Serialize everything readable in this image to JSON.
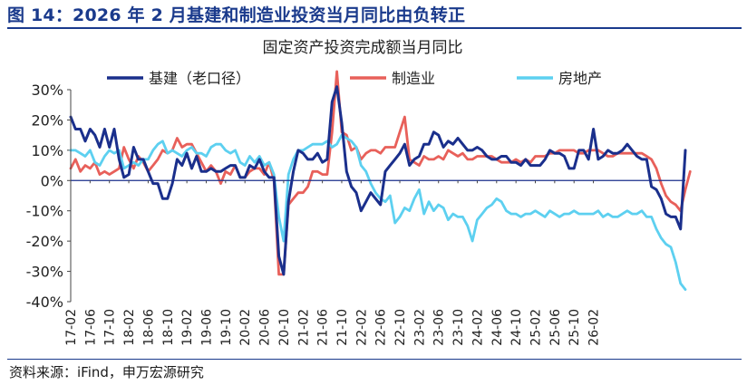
{
  "figure": {
    "title": "图 14：2026 年 2 月基建和制造业投资当月同比由负转正",
    "source": "资料来源：iFind，申万宏源研究"
  },
  "chart_data": {
    "type": "line",
    "title": "固定资产投资完成额当月同比",
    "y_tick_labels": [
      "30%",
      "20%",
      "10%",
      "0%",
      "-10%",
      "-20%",
      "-30%",
      "-40%"
    ],
    "ylim": [
      -40,
      30
    ],
    "y_ticks": [
      30,
      20,
      10,
      0,
      -10,
      -20,
      -30,
      -40
    ],
    "x_start": "2017-02",
    "x_tick_labels": [
      "17-02",
      "17-06",
      "17-10",
      "18-02",
      "18-06",
      "18-10",
      "19-02",
      "19-06",
      "19-10",
      "20-02",
      "20-06",
      "20-10",
      "21-02",
      "21-06",
      "21-10",
      "22-02",
      "22-06",
      "22-10",
      "23-02",
      "23-06",
      "23-10",
      "24-02",
      "24-06",
      "24-10",
      "25-02",
      "25-06",
      "25-10",
      "26-02"
    ],
    "legend_position": "top",
    "series": [
      {
        "name": "基建（老口径）",
        "color": "#1a2f8c",
        "values": [
          21,
          17,
          17,
          13,
          17,
          15,
          11,
          17,
          11,
          17,
          7,
          1,
          2,
          11,
          7,
          7,
          3,
          -1,
          -1,
          -6,
          -6,
          -1,
          7,
          5,
          9,
          4,
          8,
          3,
          3,
          4,
          3,
          3,
          4,
          5,
          5,
          1,
          1,
          5,
          4,
          7,
          3,
          1,
          1,
          -25,
          -31,
          -7,
          3,
          10,
          9,
          7,
          7,
          9,
          6,
          7,
          26,
          31,
          19,
          3,
          -2,
          -4,
          -10,
          -7,
          -4,
          -6,
          -8,
          3,
          5,
          7,
          9,
          12,
          5,
          7,
          8,
          12,
          12,
          16,
          15,
          11,
          13,
          12,
          14,
          12,
          10,
          10,
          11,
          10,
          8,
          7,
          7,
          8,
          8,
          6,
          6,
          5,
          7,
          5,
          5,
          5,
          7,
          10,
          9,
          9,
          8,
          4,
          4,
          10,
          10,
          7,
          17,
          7,
          8,
          10,
          9,
          9,
          10,
          12,
          10,
          8,
          7,
          7,
          -2,
          -3,
          -6,
          -11,
          -12,
          -12,
          -16,
          10
        ]
      },
      {
        "name": "制造业",
        "color": "#e8605a",
        "values": [
          4,
          7,
          3,
          5,
          4,
          6,
          2,
          3,
          2,
          3,
          4,
          11,
          7,
          4,
          8,
          6,
          3,
          5,
          7,
          10,
          9,
          10,
          14,
          11,
          12,
          12,
          9,
          6,
          3,
          5,
          3,
          -1,
          3,
          2,
          5,
          1,
          1,
          3,
          4,
          4,
          2,
          6,
          0,
          -31,
          -31,
          -8,
          -6,
          -4,
          -4,
          -2,
          3,
          3,
          2,
          2,
          16,
          36,
          16,
          15,
          10,
          11,
          7,
          9,
          10,
          10,
          9,
          11,
          11,
          11,
          16,
          21,
          7,
          6,
          5,
          8,
          7,
          7,
          8,
          7,
          10,
          9,
          8,
          9,
          7,
          7,
          8,
          8,
          8,
          8,
          7,
          6,
          6,
          6,
          7,
          6,
          7,
          6,
          8,
          8,
          8,
          9,
          9,
          10,
          10,
          10,
          10,
          9,
          9,
          10,
          10,
          10,
          9,
          8,
          8,
          9,
          9,
          9,
          9,
          9,
          9,
          8,
          7,
          4,
          -1,
          -5,
          -7,
          -8,
          -10,
          -3,
          3
        ]
      },
      {
        "name": "房地产",
        "color": "#5dd0f0",
        "values": [
          10,
          10,
          9,
          8,
          10,
          6,
          5,
          8,
          10,
          9,
          10,
          4,
          5,
          6,
          5,
          7,
          7,
          10,
          12,
          13,
          9,
          10,
          9,
          8,
          10,
          11,
          9,
          9,
          8,
          11,
          12,
          12,
          10,
          9,
          10,
          6,
          5,
          8,
          6,
          8,
          5,
          6,
          2,
          -12,
          -20,
          2,
          7,
          10,
          10,
          11,
          12,
          12,
          12,
          13,
          11,
          12,
          15,
          14,
          13,
          11,
          5,
          3,
          -1,
          -4,
          -6,
          -7,
          -5,
          -14,
          -12,
          -9,
          -10,
          -6,
          -3,
          -11,
          -7,
          -10,
          -8,
          -9,
          -13,
          -11,
          -12,
          -12,
          -15,
          -20,
          -13,
          -11,
          -9,
          -8,
          -6,
          -7,
          -10,
          -11,
          -11,
          -12,
          -11,
          -11,
          -10,
          -11,
          -12,
          -10,
          -11,
          -12,
          -11,
          -11,
          -10,
          -11,
          -11,
          -11,
          -11,
          -10,
          -12,
          -11,
          -12,
          -12,
          -11,
          -10,
          -11,
          -11,
          -10,
          -12,
          -12,
          -16,
          -19,
          -21,
          -22,
          -27,
          -34,
          -36
        ]
      }
    ]
  }
}
